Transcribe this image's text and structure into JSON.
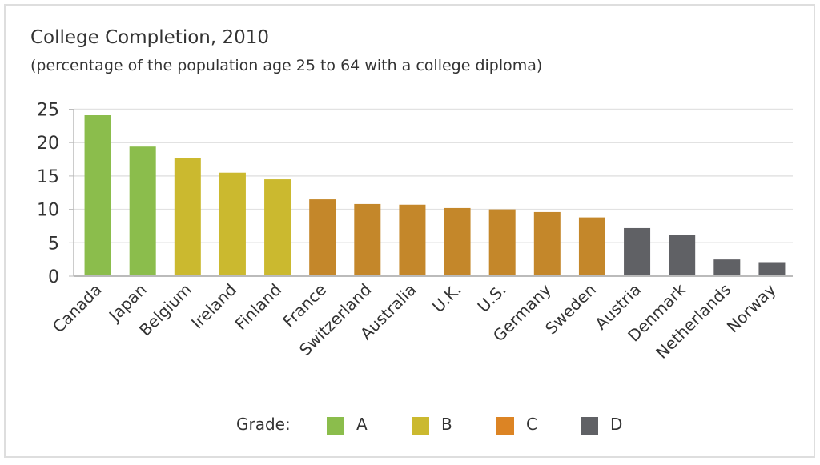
{
  "chart_data": {
    "type": "bar",
    "title": "College Completion, 2010",
    "subtitle": "(percentage of the population age 25 to 64 with a college diploma)",
    "xlabel": "",
    "ylabel": "",
    "ylim": [
      0,
      25
    ],
    "yticks": [
      0,
      5,
      10,
      15,
      20,
      25
    ],
    "grid": true,
    "categories": [
      "Canada",
      "Japan",
      "Belgium",
      "Ireland",
      "Finland",
      "France",
      "Switzerland",
      "Australia",
      "U.K.",
      "U.S.",
      "Germany",
      "Sweden",
      "Austria",
      "Denmark",
      "Netherlands",
      "Norway"
    ],
    "values": [
      24.1,
      19.4,
      17.7,
      15.5,
      14.5,
      11.5,
      10.8,
      10.7,
      10.2,
      10.0,
      9.6,
      8.8,
      7.2,
      6.2,
      2.5,
      2.1
    ],
    "grades": [
      "A",
      "A",
      "B",
      "B",
      "B",
      "C",
      "C",
      "C",
      "C",
      "C",
      "C",
      "C",
      "D",
      "D",
      "D",
      "D"
    ],
    "grade_colors": {
      "A": "#8bbd4c",
      "B": "#cbb92f",
      "C": "#c4872a",
      "D": "#606165"
    },
    "legend": {
      "title": "Grade:",
      "placement": "bottom-center",
      "items": [
        {
          "label": "A",
          "color": "#8bbd4c"
        },
        {
          "label": "B",
          "color": "#cbb92f"
        },
        {
          "label": "C",
          "color": "#dc8424"
        },
        {
          "label": "D",
          "color": "#606165"
        }
      ]
    }
  }
}
